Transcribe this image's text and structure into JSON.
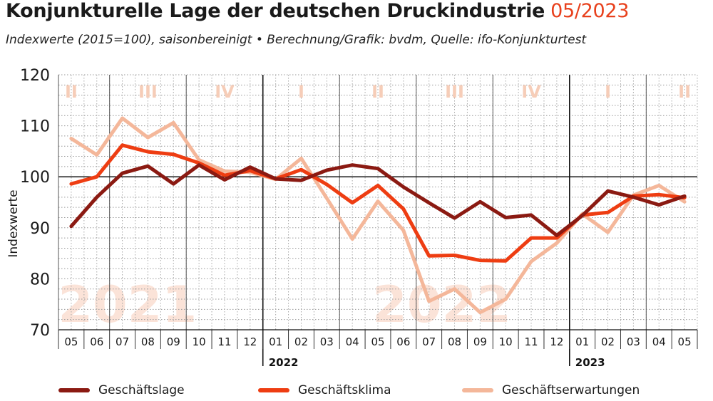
{
  "header": {
    "title": "Konjunkturelle Lage der deutschen Druckindustrie",
    "date": "05/2023",
    "subtitle": "Indexwerte (2015=100), saisonbereinigt  •  Berechnung/Grafik: bvdm, Quelle: ifo-Konjunkturtest"
  },
  "colors": {
    "geschaeftslage": "#8b1a12",
    "geschaeftsklima": "#ee3d12",
    "geschaeftserwartungen": "#f4b79a",
    "quarter_label": "#f6cdb8",
    "year_watermark": "#fbe3d8"
  },
  "chart_data": {
    "type": "line",
    "title": "Konjunkturelle Lage der deutschen Druckindustrie",
    "ylabel": "Indexwerte",
    "ylim": [
      70,
      120
    ],
    "yticks": [
      "70",
      "80",
      "90",
      "100",
      "110",
      "120"
    ],
    "categories": [
      "05",
      "06",
      "07",
      "08",
      "09",
      "10",
      "11",
      "12",
      "01",
      "02",
      "03",
      "04",
      "05",
      "06",
      "07",
      "08",
      "09",
      "10",
      "11",
      "12",
      "01",
      "02",
      "03",
      "04",
      "05"
    ],
    "year_labels": [
      {
        "label": "2022",
        "start_index": 8
      },
      {
        "label": "2023",
        "start_index": 20
      }
    ],
    "quarter_labels": [
      {
        "label": "II",
        "index": 0
      },
      {
        "label": "III",
        "index": 3
      },
      {
        "label": "IV",
        "index": 6
      },
      {
        "label": "I",
        "index": 9
      },
      {
        "label": "II",
        "index": 12
      },
      {
        "label": "III",
        "index": 15
      },
      {
        "label": "IV",
        "index": 18
      },
      {
        "label": "I",
        "index": 21
      },
      {
        "label": "II",
        "index": 24
      }
    ],
    "year_watermarks": [
      {
        "label": "2021",
        "index": 2.2
      },
      {
        "label": "2022",
        "index": 14.5
      }
    ],
    "reference_line": 100,
    "grid": true,
    "legend_position": "bottom",
    "series": [
      {
        "name": "Geschäftslage",
        "color": "#8b1a12",
        "values": [
          90.3,
          96.0,
          100.7,
          102.1,
          98.6,
          102.3,
          99.4,
          101.9,
          99.6,
          99.3,
          101.3,
          102.3,
          101.6,
          98.0,
          94.9,
          91.9,
          95.1,
          92.0,
          92.5,
          88.5,
          92.4,
          97.2,
          96.0,
          94.5,
          96.2
        ]
      },
      {
        "name": "Geschäftsklima",
        "color": "#ee3d12",
        "values": [
          98.6,
          100.0,
          106.2,
          104.9,
          104.4,
          102.7,
          100.3,
          101.2,
          99.6,
          101.4,
          98.5,
          94.9,
          98.3,
          93.7,
          84.5,
          84.6,
          83.6,
          83.5,
          88.0,
          88.0,
          92.5,
          93.0,
          96.2,
          96.5,
          95.9
        ]
      },
      {
        "name": "Geschäftserwartungen",
        "color": "#f4b79a",
        "values": [
          107.5,
          104.3,
          111.5,
          107.7,
          110.6,
          103.3,
          101.1,
          100.9,
          99.5,
          103.6,
          95.8,
          87.8,
          95.2,
          89.5,
          75.6,
          78.0,
          73.4,
          76.0,
          83.4,
          87.0,
          92.7,
          89.1,
          96.4,
          98.3,
          95.1
        ]
      }
    ]
  },
  "legend": [
    {
      "label": "Geschäftslage",
      "color": "#8b1a12"
    },
    {
      "label": "Geschäftsklima",
      "color": "#ee3d12"
    },
    {
      "label": "Geschäftserwartungen",
      "color": "#f4b79a"
    }
  ]
}
